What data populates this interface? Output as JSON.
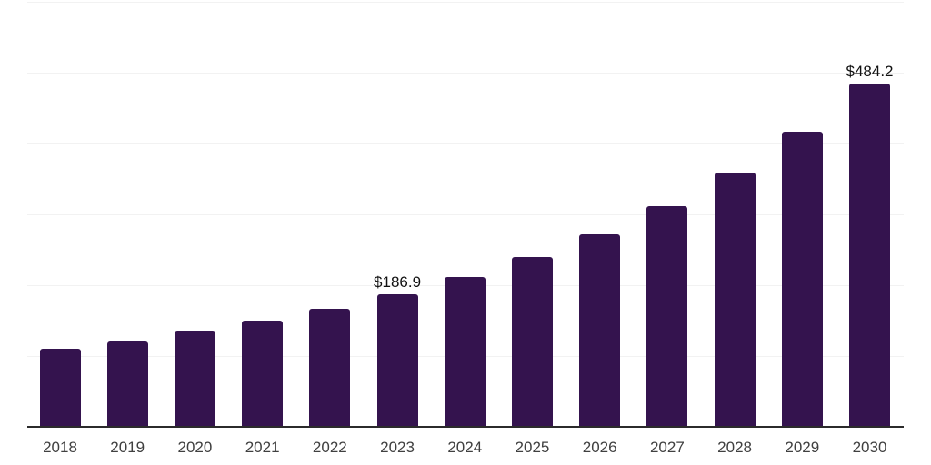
{
  "chart_data": {
    "type": "bar",
    "title": "",
    "xlabel": "",
    "ylabel": "",
    "categories": [
      "2018",
      "2019",
      "2020",
      "2021",
      "2022",
      "2023",
      "2024",
      "2025",
      "2026",
      "2027",
      "2028",
      "2029",
      "2030"
    ],
    "values": [
      110.0,
      120.4,
      135.0,
      150.0,
      166.5,
      186.9,
      211.3,
      239.5,
      271.5,
      311.0,
      358.5,
      416.5,
      484.2
    ],
    "data_labels": [
      "",
      "",
      "",
      "",
      "",
      "$186.9",
      "",
      "",
      "",
      "",
      "",
      "",
      "$484.2"
    ],
    "ylim": [
      0,
      600
    ],
    "gridline_values": [
      100,
      200,
      300,
      400,
      500,
      600
    ],
    "grid": true,
    "legend": false,
    "colors": {
      "bar": "#34134e",
      "gridline": "#f2f2f2",
      "axis_line": "#2b2b2b",
      "tick_label": "#404040",
      "data_label": "#111111",
      "background": "#ffffff"
    }
  }
}
